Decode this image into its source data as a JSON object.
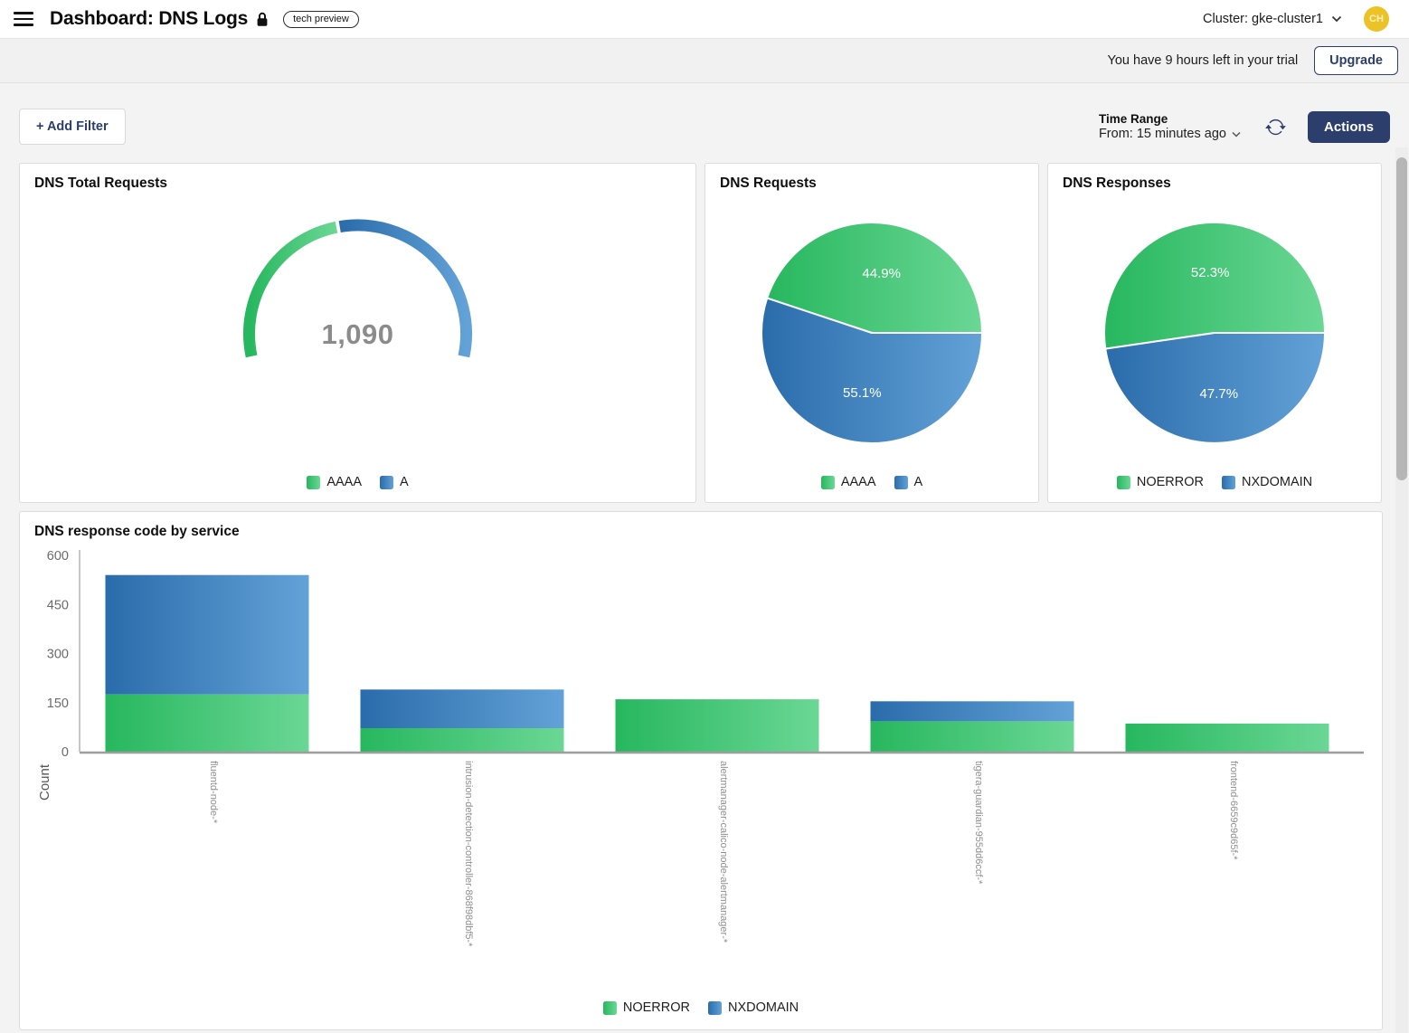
{
  "header": {
    "title": "Dashboard: DNS Logs",
    "tech_preview_badge": "tech preview",
    "cluster_selector": "Cluster: gke-cluster1",
    "avatar_initials": "CH"
  },
  "trial_bar": {
    "message": "You have 9 hours left in your trial",
    "upgrade_label": "Upgrade"
  },
  "toolbar": {
    "add_filter_label": "+ Add Filter",
    "time_range_label": "Time Range",
    "time_range_value": "From: 15 minutes ago",
    "actions_label": "Actions"
  },
  "colors": {
    "green_gradient": [
      "#27b75e",
      "#6bd795"
    ],
    "blue_gradient": [
      "#2a6cab",
      "#63a2d7"
    ],
    "navy": "#2c3e6b",
    "avatar_gold": "#ecc227",
    "gauge_value_gray": "#8b8b8b"
  },
  "chart_data": [
    {
      "type": "gauge",
      "title": "DNS Total Requests",
      "center_label": "1,090",
      "total": 1090,
      "start_angle": 192,
      "end_angle": -12,
      "segments": [
        {
          "name": "AAAA",
          "fraction": 0.449,
          "color": "green"
        },
        {
          "name": "A",
          "fraction": 0.551,
          "color": "blue"
        }
      ],
      "legend": [
        {
          "label": "AAAA",
          "color": "green"
        },
        {
          "label": "A",
          "color": "blue"
        }
      ]
    },
    {
      "type": "pie",
      "title": "DNS Requests",
      "slices": [
        {
          "name": "AAAA",
          "percent": 44.9,
          "label": "44.9%",
          "color": "green"
        },
        {
          "name": "A",
          "percent": 55.1,
          "label": "55.1%",
          "color": "blue"
        }
      ],
      "legend": [
        {
          "label": "AAAA",
          "color": "green"
        },
        {
          "label": "A",
          "color": "blue"
        }
      ]
    },
    {
      "type": "pie",
      "title": "DNS Responses",
      "slices": [
        {
          "name": "NOERROR",
          "percent": 52.3,
          "label": "52.3%",
          "color": "green"
        },
        {
          "name": "NXDOMAIN",
          "percent": 47.7,
          "label": "47.7%",
          "color": "blue"
        }
      ],
      "legend": [
        {
          "label": "NOERROR",
          "color": "green"
        },
        {
          "label": "NXDOMAIN",
          "color": "blue"
        }
      ]
    },
    {
      "type": "bar",
      "title": "DNS response code by service",
      "ylabel": "Count",
      "ylim": [
        0,
        600
      ],
      "yticks": [
        0,
        150,
        300,
        450,
        600
      ],
      "categories": [
        "fluentd-node-*",
        "intrusion-detection-controller-868f98dbf5-*",
        "alertmanager-calico-node-alertmanager-*",
        "tigera-guardian-955dd6ccf-*",
        "frontend-6659c9d65f-*"
      ],
      "series": [
        {
          "name": "NOERROR",
          "color": "green",
          "values": [
            175,
            72,
            160,
            93,
            86
          ]
        },
        {
          "name": "NXDOMAIN",
          "color": "blue",
          "values": [
            365,
            118,
            0,
            61,
            0
          ]
        }
      ],
      "legend": [
        {
          "label": "NOERROR",
          "color": "green"
        },
        {
          "label": "NXDOMAIN",
          "color": "blue"
        }
      ]
    }
  ]
}
